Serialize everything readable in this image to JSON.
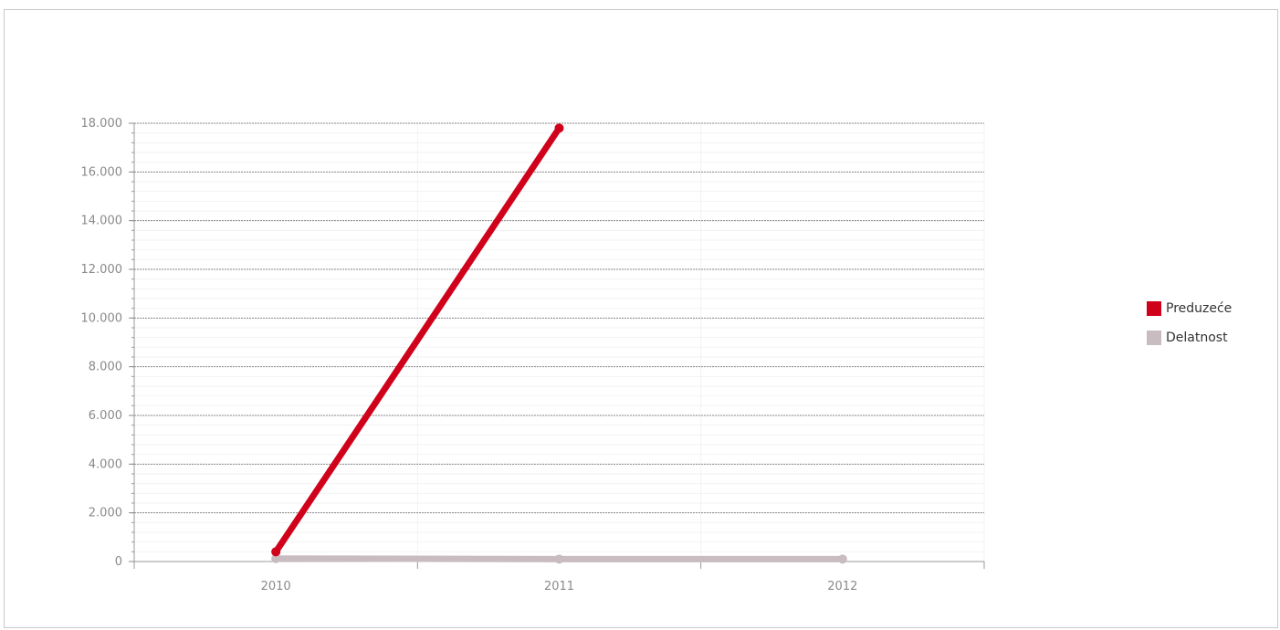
{
  "chart_data": {
    "type": "line",
    "x": [
      "2010",
      "2011",
      "2012"
    ],
    "series": [
      {
        "name": "Preduzeće",
        "color": "#d0021b",
        "values": [
          400,
          17800,
          null
        ]
      },
      {
        "name": "Delatnost",
        "color": "#c9bcc0",
        "values": [
          120,
          100,
          100
        ]
      }
    ],
    "ylim": [
      0,
      18000
    ],
    "yticks": [
      0,
      2000,
      4000,
      6000,
      8000,
      10000,
      12000,
      14000,
      16000,
      18000
    ],
    "ytick_labels": [
      "0",
      "2.000",
      "4.000",
      "6.000",
      "8.000",
      "10.000",
      "12.000",
      "14.000",
      "16.000",
      "18.000"
    ],
    "grid": true,
    "legend_position": "right",
    "title": "",
    "xlabel": "",
    "ylabel": ""
  }
}
